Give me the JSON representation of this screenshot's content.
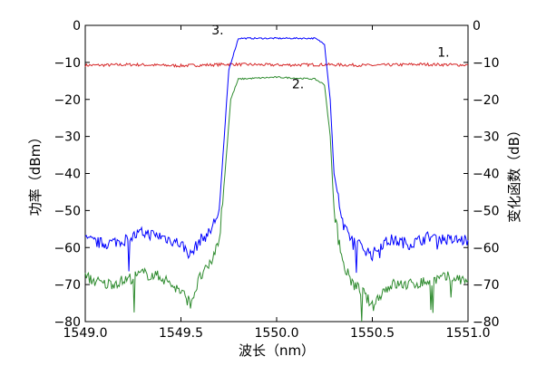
{
  "chart_data": {
    "type": "line",
    "xlabel": "波长（nm）",
    "ylabel_left": "功率（dBm）",
    "ylabel_right": "变化函数（dB）",
    "xlim": [
      1549.0,
      1551.0
    ],
    "ylim": [
      -80,
      0
    ],
    "x_ticks": [
      "1549.0",
      "1549.5",
      "1550.0",
      "1550.5",
      "1551.0"
    ],
    "y_ticks": [
      "0",
      "−10",
      "−20",
      "−30",
      "−40",
      "−50",
      "−60",
      "−70",
      "−80"
    ],
    "grid": false,
    "series": [
      {
        "label": "1.",
        "color": "#d62728",
        "x": [
          1549.0,
          1549.25,
          1549.5,
          1549.75,
          1550.0,
          1550.25,
          1550.5,
          1550.75,
          1551.0
        ],
        "y": [
          -10.8,
          -10.6,
          -10.9,
          -10.5,
          -10.7,
          -10.6,
          -10.8,
          -10.5,
          -10.7
        ]
      },
      {
        "label": "3.",
        "color": "#0000ff",
        "x": [
          1549.0,
          1549.1,
          1549.2,
          1549.3,
          1549.4,
          1549.5,
          1549.55,
          1549.6,
          1549.65,
          1549.7,
          1549.72,
          1549.75,
          1549.8,
          1550.0,
          1550.2,
          1550.25,
          1550.28,
          1550.3,
          1550.35,
          1550.4,
          1550.45,
          1550.5,
          1550.55,
          1550.6,
          1550.7,
          1550.8,
          1550.9,
          1551.0
        ],
        "y": [
          -58,
          -59,
          -58,
          -56,
          -57,
          -59,
          -62,
          -58,
          -56,
          -50,
          -35,
          -12,
          -3.5,
          -3.5,
          -3.5,
          -5,
          -20,
          -40,
          -55,
          -58,
          -60,
          -62,
          -59,
          -58,
          -59,
          -57,
          -58,
          -58
        ]
      },
      {
        "label": "2.",
        "color": "#2e8b2e",
        "x": [
          1549.0,
          1549.1,
          1549.2,
          1549.3,
          1549.4,
          1549.5,
          1549.55,
          1549.6,
          1549.65,
          1549.7,
          1549.73,
          1549.76,
          1549.8,
          1550.0,
          1550.2,
          1550.25,
          1550.28,
          1550.3,
          1550.35,
          1550.4,
          1550.45,
          1550.5,
          1550.55,
          1550.6,
          1550.7,
          1550.8,
          1550.9,
          1551.0
        ],
        "y": [
          -68,
          -70,
          -69,
          -67,
          -68,
          -72,
          -75,
          -68,
          -65,
          -58,
          -40,
          -20,
          -14.5,
          -14,
          -14.5,
          -16,
          -30,
          -50,
          -65,
          -70,
          -72,
          -76,
          -72,
          -70,
          -70,
          -69,
          -68,
          -69
        ]
      }
    ],
    "annotations": [
      {
        "text": "1.",
        "x": 1550.84,
        "y": -8.5
      },
      {
        "text": "2.",
        "x": 1550.08,
        "y": -17
      },
      {
        "text": "3.",
        "x": 1549.66,
        "y": -2.5
      }
    ]
  }
}
